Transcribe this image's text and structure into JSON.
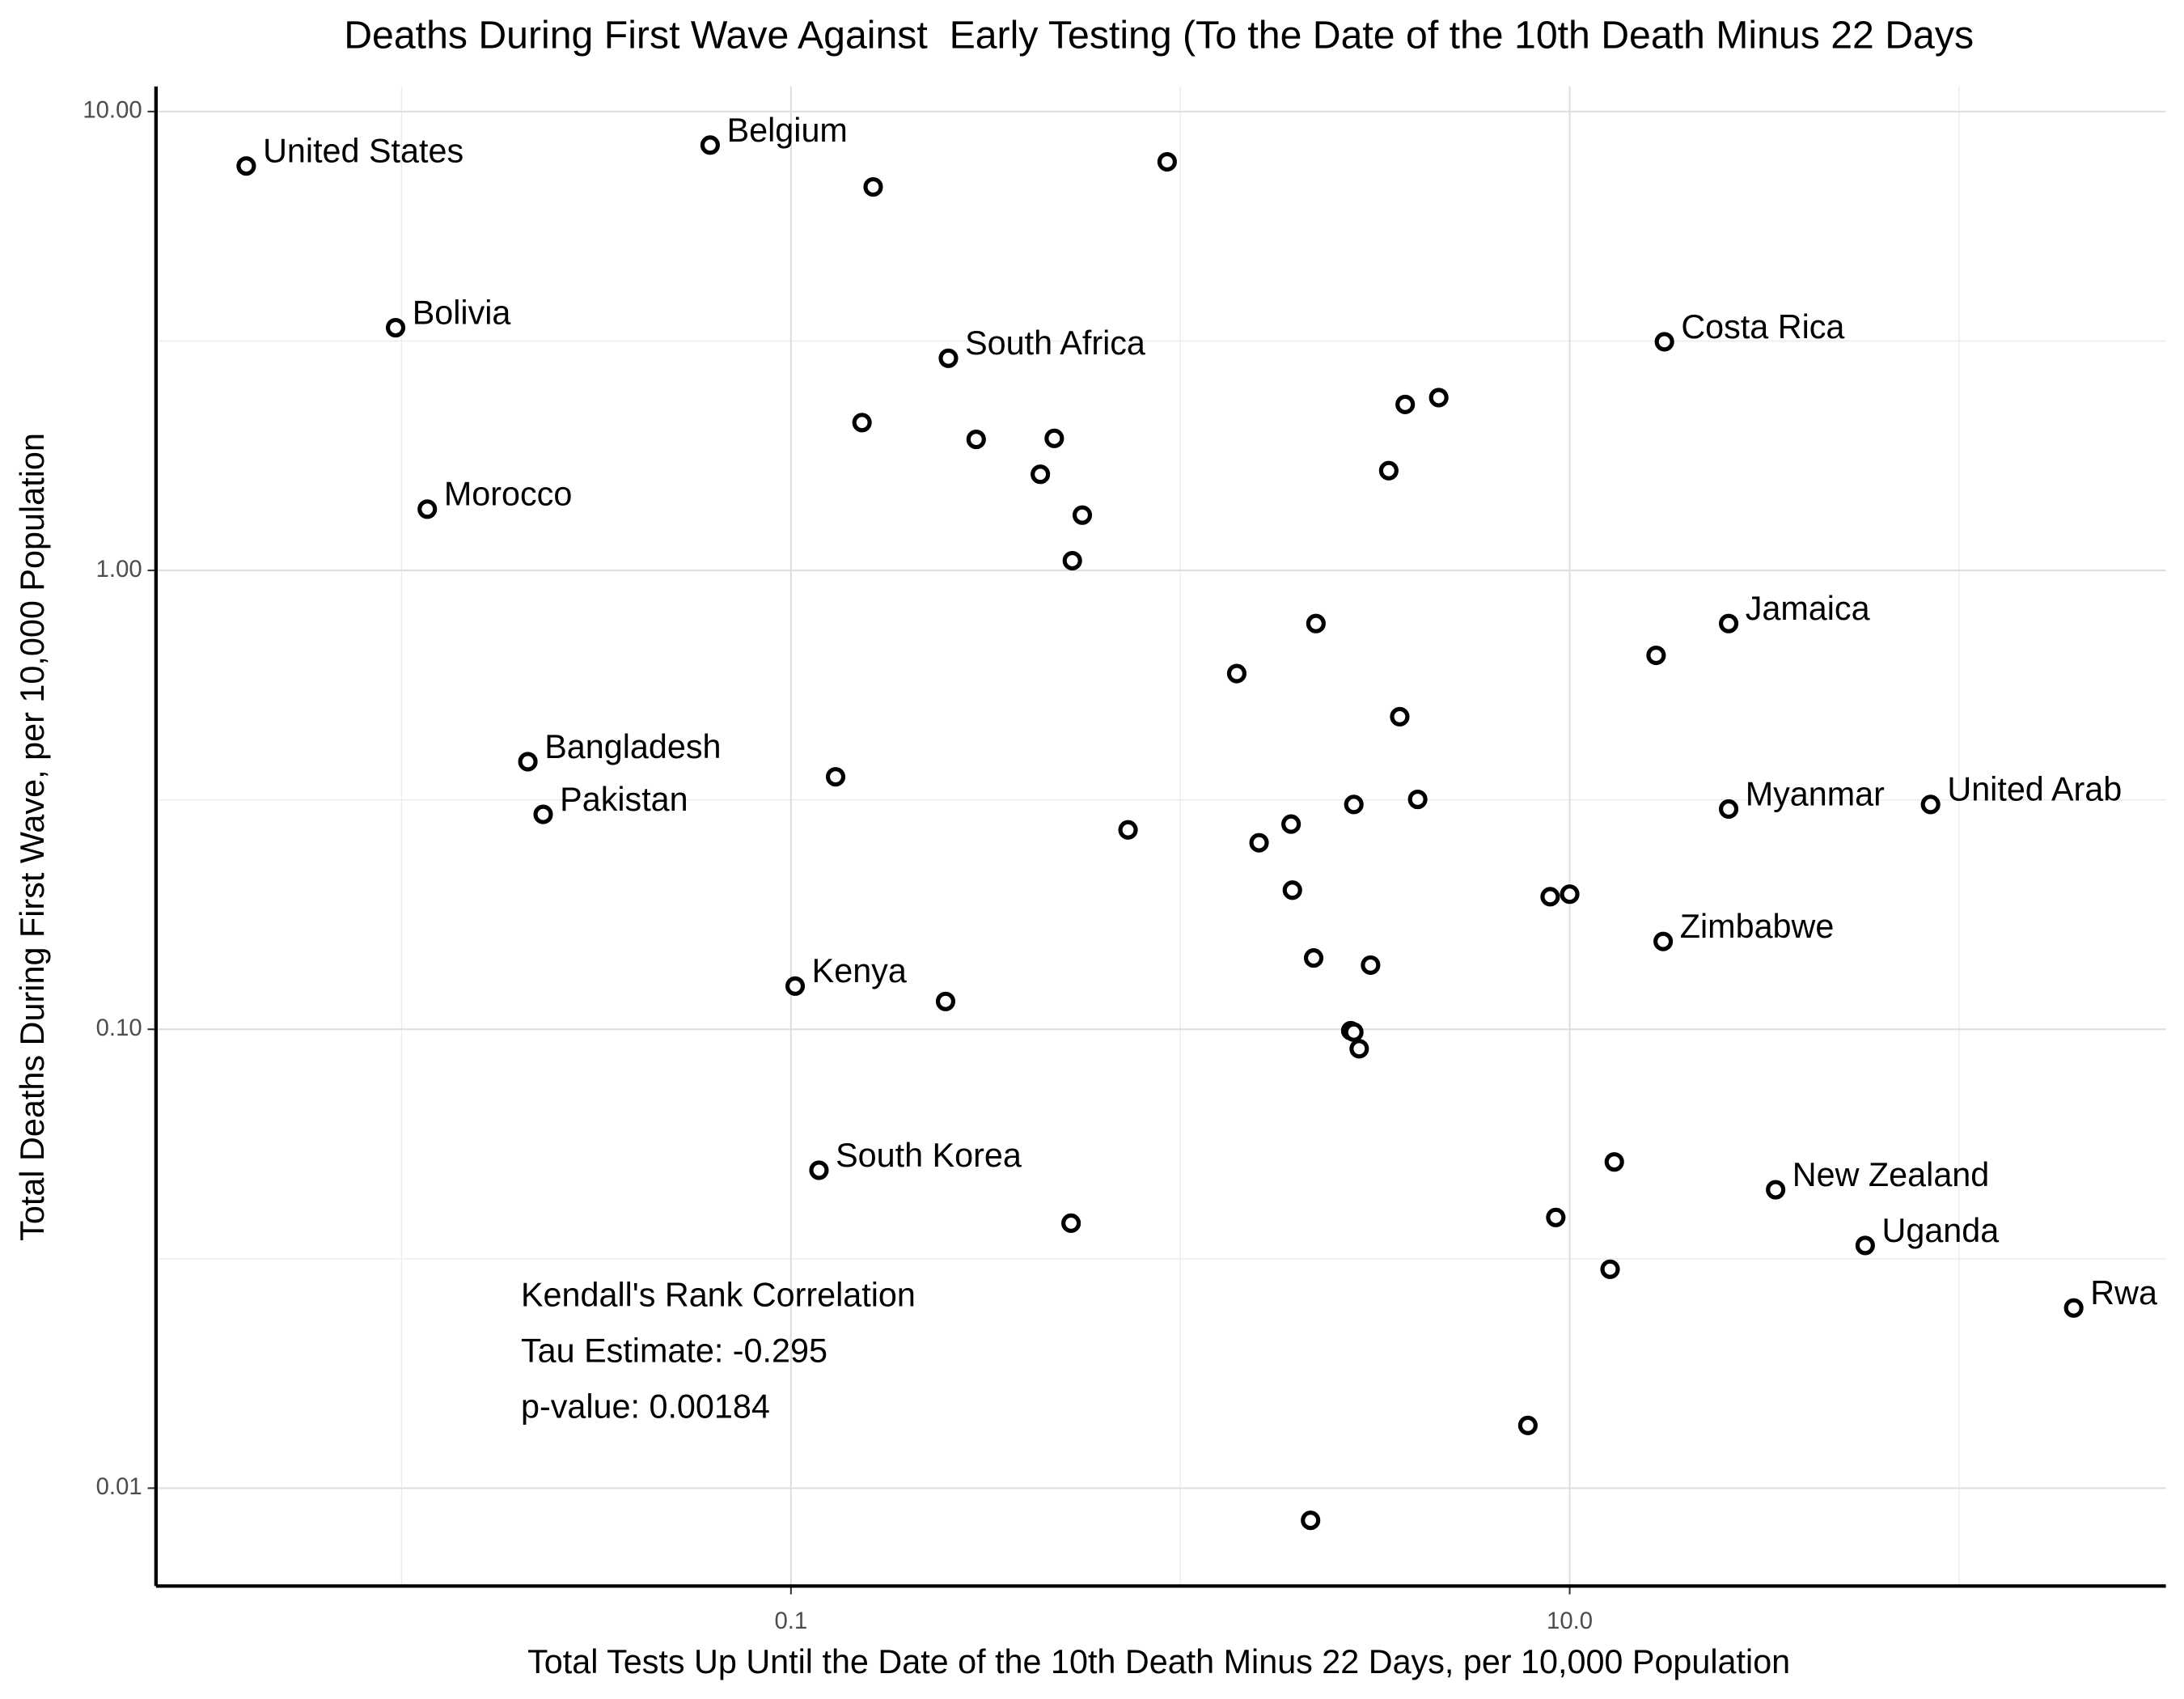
{
  "chart_data": {
    "type": "scatter",
    "title": "Deaths During First Wave Against  Early Testing (To the Date of the 10th Death Minus 22 Days",
    "x_label": "Total Tests Up Until the Date of the 10th Death Minus 22 Days, per 10,000 Population",
    "y_label": "Total Deaths During First Wave, per 10,000 Population",
    "annotations": [
      "Kendall's Rank Correlation",
      "Tau Estimate: -0.295",
      "p-value: 0.00184"
    ],
    "log_x": true,
    "log_y": true,
    "grid": true,
    "xlim": [
      0.00234,
      339.8
    ],
    "ylim": [
      0.00612,
      11.34
    ],
    "xticks": [
      0.1,
      {
        "value": 10,
        "label": "10.0"
      }
    ],
    "yticks": [
      {
        "value": 10,
        "label": "10.00"
      },
      {
        "value": 1,
        "label": "1.00"
      },
      {
        "value": 0.1,
        "label": "0.10"
      },
      {
        "value": 0.01,
        "label": "0.01"
      }
    ],
    "minor_xticks": [
      0.01,
      1,
      100
    ],
    "minor_yticks": [
      3.162,
      0.3162,
      0.03162
    ],
    "color": "#000000",
    "x": [
      0.00399,
      0.062,
      0.1626,
      0.925,
      0.00965,
      0.2537,
      17.51,
      0.1522,
      0.299,
      0.4745,
      3.78,
      4.61,
      3.43,
      0.437,
      0.56,
      0.01164,
      0.528,
      2.23,
      25.6,
      16.67,
      1.396,
      3.66,
      0.0211,
      0.1302,
      0.0231,
      2.79,
      4.07,
      25.6,
      84.5,
      0.734,
      1.925,
      1.593,
      1.94,
      8.91,
      10.0,
      17.38,
      2.2,
      3.08,
      0.1025,
      0.2495,
      2.74,
      2.79,
      2.88,
      0.118,
      13.02,
      33.8,
      9.21,
      0.524,
      57.4,
      12.7,
      197,
      7.81,
      2.16
    ],
    "y": [
      7.61,
      8.45,
      6.85,
      7.77,
      3.38,
      2.9,
      3.15,
      2.1,
      1.93,
      1.94,
      2.3,
      2.38,
      1.65,
      1.62,
      1.32,
      1.36,
      1.05,
      0.766,
      0.766,
      0.653,
      0.596,
      0.48,
      0.383,
      0.355,
      0.294,
      0.309,
      0.317,
      0.302,
      0.309,
      0.272,
      0.28,
      0.255,
      0.201,
      0.1945,
      0.197,
      0.1554,
      0.143,
      0.138,
      0.1242,
      0.115,
      0.0993,
      0.0986,
      0.0907,
      0.0493,
      0.0514,
      0.0447,
      0.0389,
      0.0378,
      0.0338,
      0.03,
      0.0247,
      0.0137,
      0.00851
    ],
    "labels": [
      "United States",
      "Belgium",
      null,
      null,
      "Bolivia",
      "South Africa",
      "Costa Rica",
      null,
      null,
      null,
      null,
      null,
      null,
      null,
      null,
      "Morocco",
      null,
      null,
      "Jamaica",
      null,
      null,
      null,
      "Bangladesh",
      null,
      "Pakistan",
      null,
      null,
      "Myanmar",
      "United Arab",
      null,
      null,
      null,
      null,
      null,
      null,
      "Zimbabwe",
      null,
      null,
      "Kenya",
      null,
      null,
      null,
      null,
      "South Korea",
      null,
      "New Zealand",
      null,
      null,
      "Uganda",
      null,
      "Rwa",
      null,
      null
    ]
  }
}
